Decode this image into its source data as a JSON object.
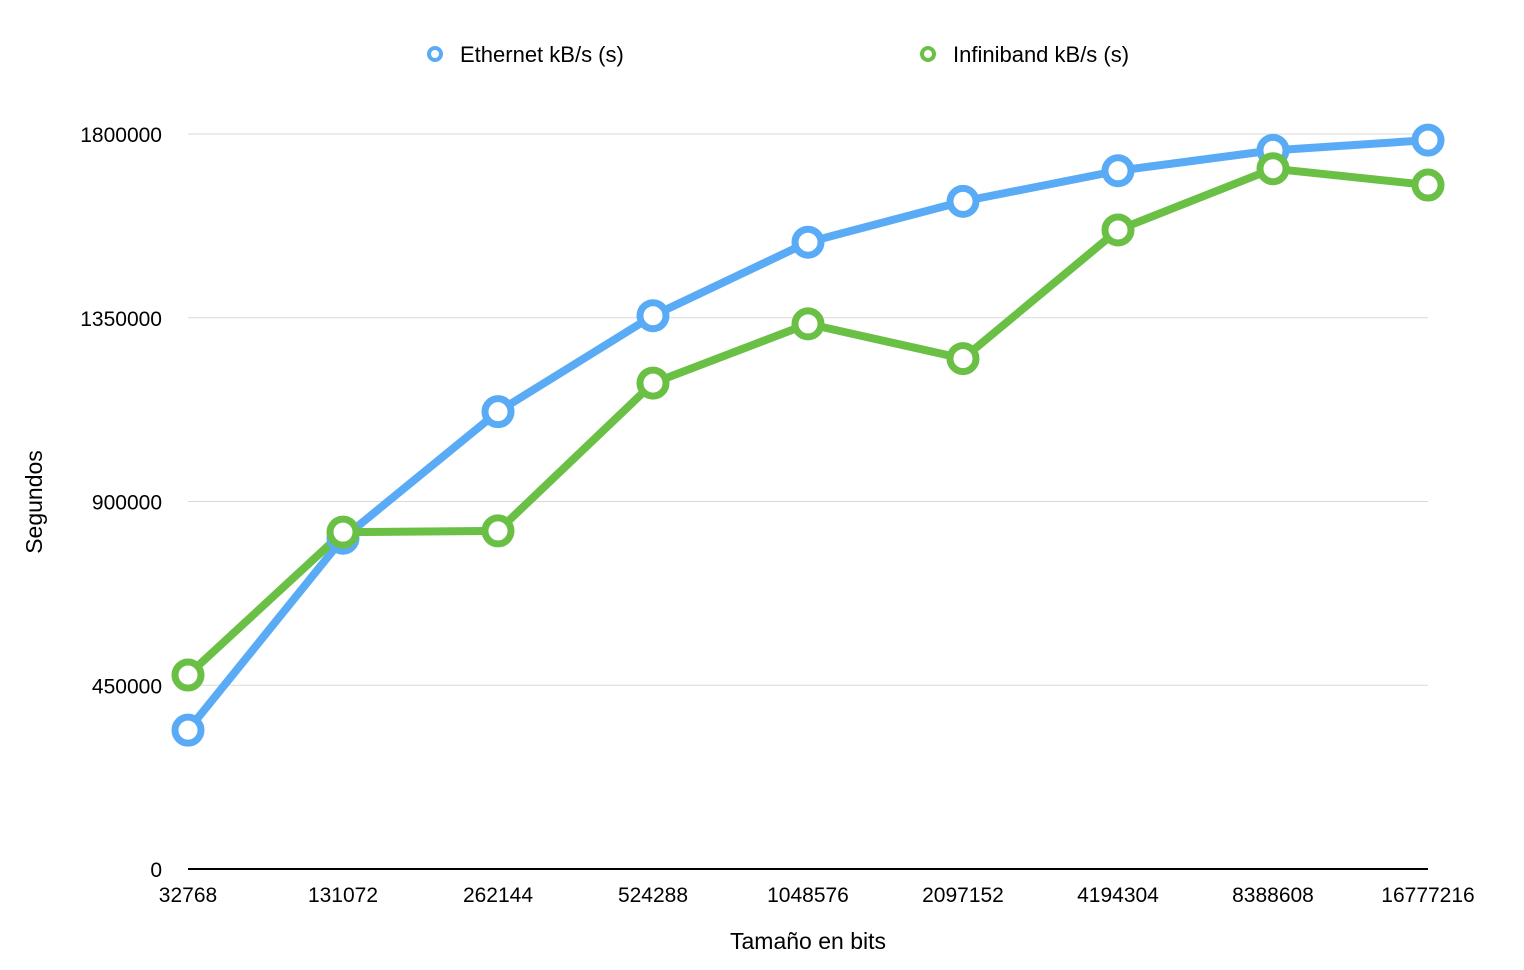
{
  "chart_data": {
    "type": "line",
    "title": "",
    "xlabel": "Tamaño en bits",
    "ylabel": "Segundos",
    "categories": [
      "32768",
      "131072",
      "262144",
      "524288",
      "1048576",
      "2097152",
      "4194304",
      "8388608",
      "16777216"
    ],
    "y_ticks": [
      "0",
      "450000",
      "900000",
      "1350000",
      "1800000"
    ],
    "ylim": [
      0,
      1800000
    ],
    "grid": true,
    "legend_position": "top",
    "series": [
      {
        "name": "Ethernet kB/s (s)",
        "color": "#5aabf5",
        "values": [
          340000,
          810000,
          1120000,
          1355000,
          1535000,
          1635000,
          1710000,
          1760000,
          1785000
        ]
      },
      {
        "name": "Infiniband kB/s (s)",
        "color": "#6abf45",
        "values": [
          475000,
          825000,
          828000,
          1190000,
          1335000,
          1250000,
          1565000,
          1715000,
          1675000
        ]
      }
    ]
  }
}
